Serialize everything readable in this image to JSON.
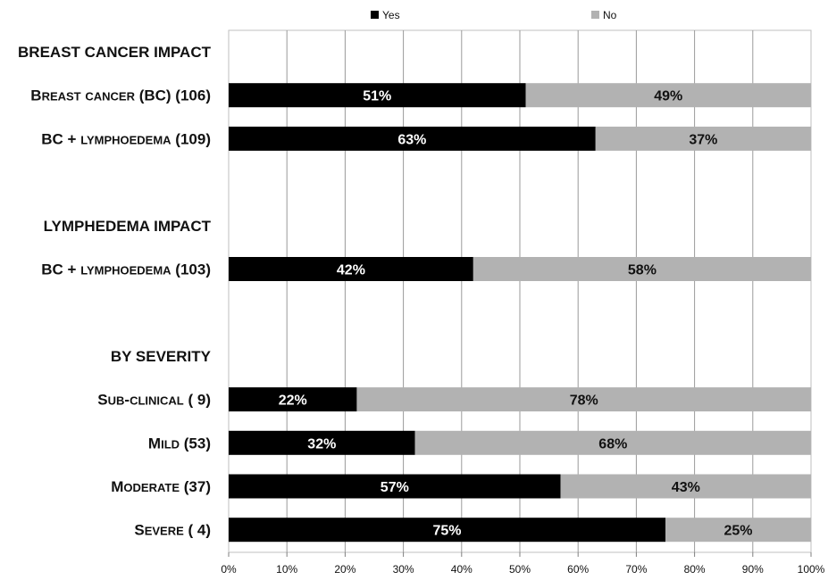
{
  "chart_data": {
    "type": "bar",
    "orientation": "horizontal",
    "stacked": "percent",
    "legend": {
      "position": "top"
    },
    "series": [
      {
        "name": "Yes",
        "color": "#000000"
      },
      {
        "name": "No",
        "color": "#b2b2b2"
      }
    ],
    "rows": [
      {
        "kind": "heading",
        "label": "BREAST CANCER IMPACT"
      },
      {
        "kind": "bar",
        "label": "Breast cancer (BC) (106)",
        "yes": 51,
        "no": 49,
        "yes_label": "51%",
        "no_label": "49%"
      },
      {
        "kind": "bar",
        "label": "BC + lymphoedema (109)",
        "yes": 63,
        "no": 37,
        "yes_label": "63%",
        "no_label": "37%"
      },
      {
        "kind": "blank"
      },
      {
        "kind": "heading",
        "label": "LYMPHEDEMA IMPACT"
      },
      {
        "kind": "bar",
        "label": "BC + lymphoedema (103)",
        "yes": 42,
        "no": 58,
        "yes_label": "42%",
        "no_label": "58%"
      },
      {
        "kind": "blank"
      },
      {
        "kind": "heading",
        "label": "BY SEVERITY"
      },
      {
        "kind": "bar",
        "label": "Sub-clinical ( 9)",
        "yes": 22,
        "no": 78,
        "yes_label": "22%",
        "no_label": "78%"
      },
      {
        "kind": "bar",
        "label": "Mild (53)",
        "yes": 32,
        "no": 68,
        "yes_label": "32%",
        "no_label": "68%"
      },
      {
        "kind": "bar",
        "label": "Moderate (37)",
        "yes": 57,
        "no": 43,
        "yes_label": "57%",
        "no_label": "43%"
      },
      {
        "kind": "bar",
        "label": "Severe ( 4)",
        "yes": 75,
        "no": 25,
        "yes_label": "75%",
        "no_label": "25%"
      }
    ],
    "xlim": [
      0,
      100
    ],
    "xticks": [
      "0%",
      "10%",
      "20%",
      "30%",
      "40%",
      "50%",
      "60%",
      "70%",
      "80%",
      "90%",
      "100%"
    ],
    "grid": true
  }
}
